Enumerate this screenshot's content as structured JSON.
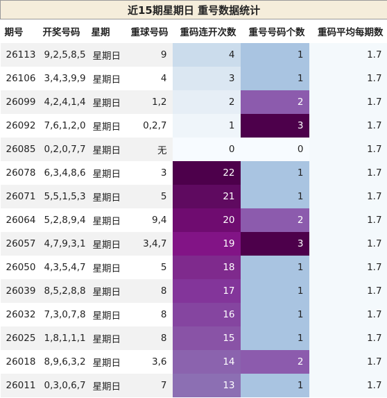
{
  "table": {
    "title": "近15期星期日 重号数据统计",
    "columns": [
      "期号",
      "开奖号码",
      "星期",
      "重球号码",
      "重码连开次数",
      "重号号码个数",
      "重码平均每期数"
    ],
    "rows": [
      [
        26113,
        "9,2,5,8,5",
        "星期日",
        "9",
        4,
        1,
        1.7
      ],
      [
        26106,
        "3,4,3,9,9",
        "星期日",
        "4",
        3,
        1,
        1.7
      ],
      [
        26099,
        "4,2,4,1,4",
        "星期日",
        "1,2",
        2,
        2,
        1.7
      ],
      [
        26092,
        "7,6,1,2,0",
        "星期日",
        "0,2,7",
        1,
        3,
        1.7
      ],
      [
        26085,
        "0,2,0,7,7",
        "星期日",
        "无",
        0,
        0,
        1.7
      ],
      [
        26078,
        "6,3,4,8,6",
        "星期日",
        "3",
        22,
        1,
        1.7
      ],
      [
        26071,
        "5,5,1,5,3",
        "星期日",
        "5",
        21,
        1,
        1.7
      ],
      [
        26064,
        "5,2,8,9,4",
        "星期日",
        "9,4",
        20,
        2,
        1.7
      ],
      [
        26057,
        "4,7,9,3,1",
        "星期日",
        "3,4,7",
        19,
        3,
        1.7
      ],
      [
        26050,
        "4,3,5,4,7",
        "星期日",
        "5",
        18,
        1,
        1.7
      ],
      [
        26039,
        "8,5,2,8,8",
        "星期日",
        "8",
        17,
        1,
        1.7
      ],
      [
        26032,
        "7,3,0,7,8",
        "星期日",
        "8",
        16,
        1,
        1.7
      ],
      [
        26025,
        "1,8,1,1,1",
        "星期日",
        "8",
        15,
        1,
        1.7
      ],
      [
        26018,
        "8,9,6,3,2",
        "星期日",
        "3,6",
        14,
        2,
        1.7
      ],
      [
        26011,
        "0,3,0,6,7",
        "星期日",
        "7",
        13,
        1,
        1.7
      ]
    ],
    "cell_colors": [
      [
        "#cbdcec",
        "#a9c4e1",
        "#f4f9fc"
      ],
      [
        "#dbe7f2",
        "#a9c4e1",
        "#f4f9fc"
      ],
      [
        "#e6eef6",
        "#8c5bad",
        "#f4f9fc"
      ],
      [
        "#eff5fa",
        "#4d004b",
        "#f4f9fc"
      ],
      [
        "#f7fbff",
        "#f7fbff",
        "#f4f9fc"
      ],
      [
        "#4d004b",
        "#a9c4e1",
        "#f4f9fc"
      ],
      [
        "#5f0a60",
        "#a9c4e1",
        "#f4f9fc"
      ],
      [
        "#6f0c70",
        "#8c5bad",
        "#f4f9fc"
      ],
      [
        "#821486",
        "#4d004b",
        "#f4f9fc"
      ],
      [
        "#7f2a8d",
        "#a9c4e1",
        "#f4f9fc"
      ],
      [
        "#83359a",
        "#a9c4e1",
        "#f4f9fc"
      ],
      [
        "#8545a0",
        "#a9c4e1",
        "#f4f9fc"
      ],
      [
        "#8953a6",
        "#a9c4e1",
        "#f4f9fc"
      ],
      [
        "#8b63ae",
        "#8c5bad",
        "#f4f9fc"
      ],
      [
        "#8c6fb3",
        "#a9c4e1",
        "#f4f9fc"
      ]
    ]
  }
}
